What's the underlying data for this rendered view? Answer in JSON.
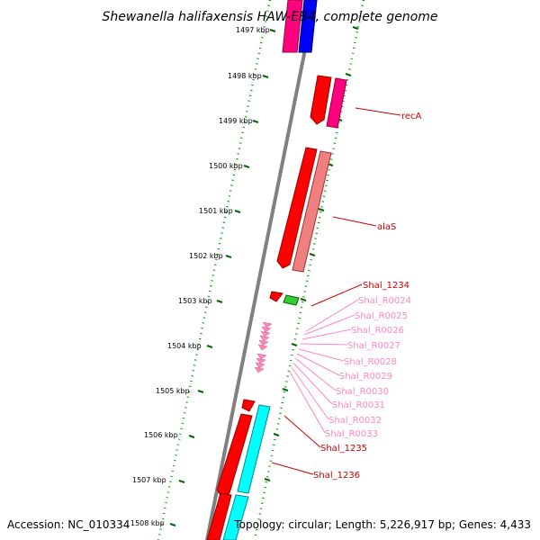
{
  "title": "Shewanella halifaxensis HAW-EB4, complete genome",
  "accession_text": "Accession: NC_010334",
  "topology_text": "Topology: circular; Length: 5,226,917 bp; Genes: 4,433",
  "ticks": [
    "1497 kbp",
    "1498 kbp",
    "1499 kbp",
    "1500 kbp",
    "1501 kbp",
    "1502 kbp",
    "1503 kbp",
    "1504 kbp",
    "1505 kbp",
    "1506 kbp",
    "1507 kbp",
    "1508 kbp"
  ],
  "genes": [
    {
      "label": "recA",
      "color": "#cc0000"
    },
    {
      "label": "alaS",
      "color": "#cc0000"
    },
    {
      "label": "Shal_1234",
      "color": "#cc0000"
    },
    {
      "label": "Shal_R0024",
      "color": "#ff88bb"
    },
    {
      "label": "Shal_R0025",
      "color": "#ff88bb"
    },
    {
      "label": "Shal_R0026",
      "color": "#ff88bb"
    },
    {
      "label": "Shal_R0027",
      "color": "#ff88bb"
    },
    {
      "label": "Shal_R0028",
      "color": "#ff88bb"
    },
    {
      "label": "Shal_R0029",
      "color": "#ff88bb"
    },
    {
      "label": "Shal_R0030",
      "color": "#ff88bb"
    },
    {
      "label": "Shal_R0031",
      "color": "#ff88bb"
    },
    {
      "label": "Shal_R0032",
      "color": "#ff88bb"
    },
    {
      "label": "Shal_R0033",
      "color": "#ff88bb"
    },
    {
      "label": "Shal_1235",
      "color": "#cc0000"
    },
    {
      "label": "Shal_1236",
      "color": "#cc0000"
    }
  ],
  "colors": {
    "cds_forward": "#ff0000",
    "cds_reverse": "#ff0080",
    "blue_feature": "#0000ff",
    "trna": "#ff88bb",
    "rrna": "#33cc33",
    "cyan_feature": "#00ffff",
    "salmon_feature": "#f08080",
    "backbone": "#808080",
    "tick_green": "#006600"
  }
}
